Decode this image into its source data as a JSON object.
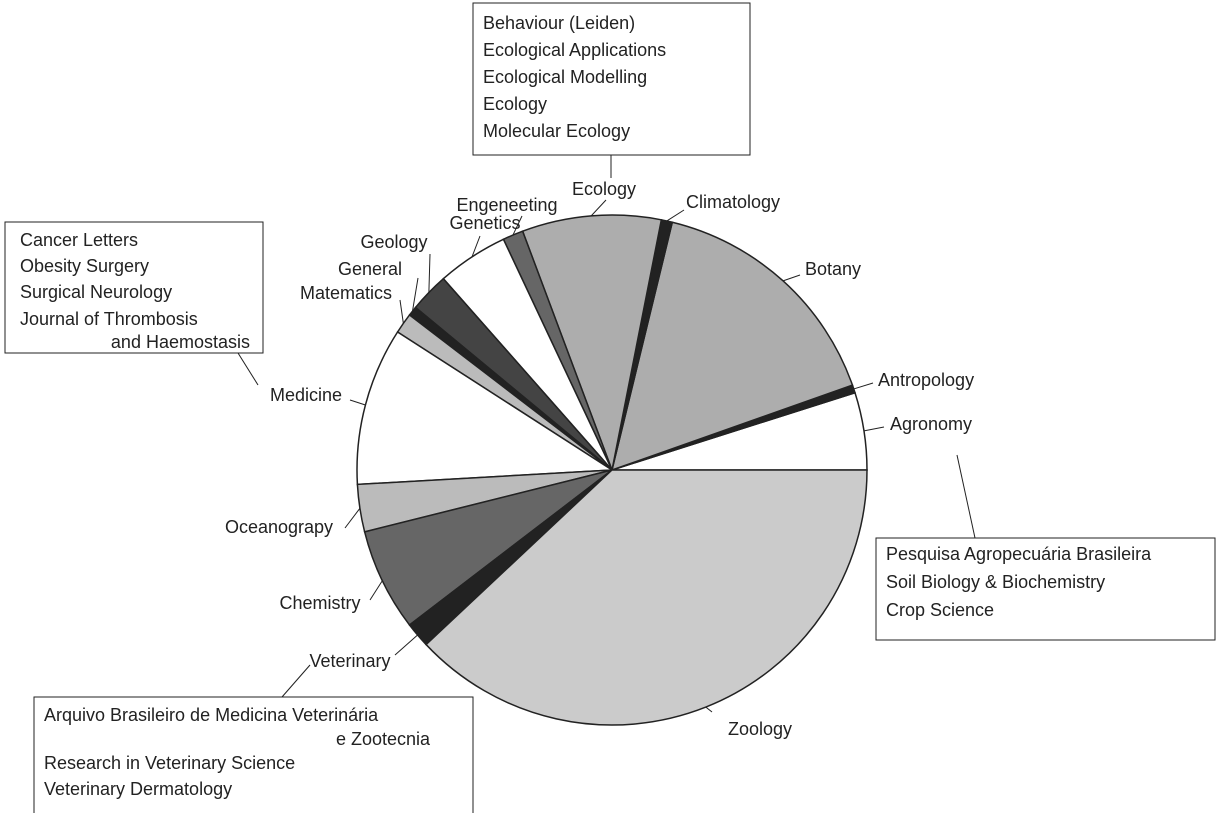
{
  "chart_data": {
    "type": "pie",
    "categories": [
      "Agronomy",
      "Antropology",
      "Botany",
      "Climatology",
      "Ecology",
      "Engeneeting",
      "Genetics",
      "Geology",
      "General",
      "Matematics",
      "Medicine",
      "Oceanograpy",
      "Chemistry",
      "Veterinary",
      "Zoology"
    ],
    "values": [
      4.9,
      0.5,
      15.8,
      0.7,
      8.8,
      1.3,
      4.5,
      2.5,
      0.6,
      1.3,
      10,
      3,
      6.5,
      1.6,
      38
    ],
    "colors": [
      "#ffffff",
      "#222222",
      "#adadad",
      "#222222",
      "#adadad",
      "#666666",
      "#ffffff",
      "#444444",
      "#222222",
      "#bbbbbb",
      "#ffffff",
      "#bbbbbb",
      "#666666",
      "#222222",
      "#cbcbcb"
    ],
    "annotations": [
      [
        "Behaviour (Leiden)",
        "Ecological Applications",
        "Ecological Modelling",
        "Ecology",
        "Molecular Ecology"
      ],
      [
        "Cancer Letters",
        "Obesity Surgery",
        "Surgical Neurology",
        "Journal of Thrombosis",
        "and Haemostasis"
      ],
      [
        "Pesquisa Agropecuária Brasileira",
        "Soil Biology & Biochemistry",
        "Crop Science"
      ],
      [
        "Arquivo Brasileiro de Medicina Veterinária",
        "e Zootecnia",
        "Research in Veterinary Science",
        "Veterinary Dermatology"
      ]
    ]
  }
}
